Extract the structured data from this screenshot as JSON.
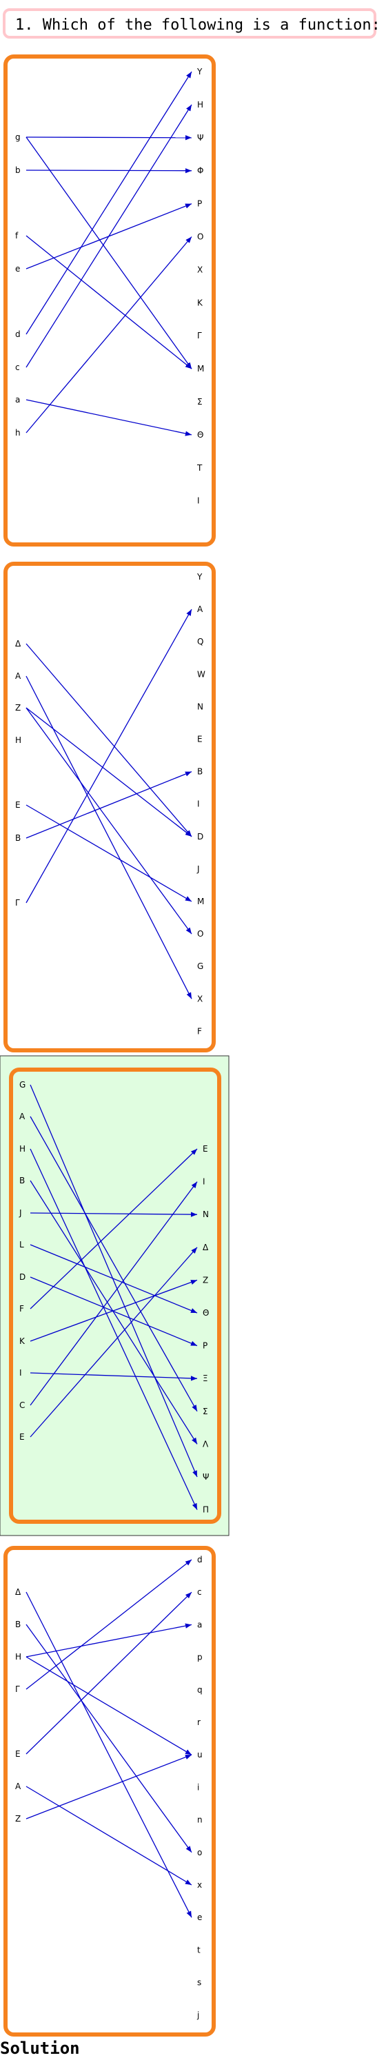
{
  "question": {
    "number": "1.",
    "text": "Which of the following is a function:"
  },
  "solution_label": "Solution",
  "colors": {
    "frame": "#f5821f",
    "arrow": "#0000cc",
    "highlight_bg": "#e0fde0",
    "question_border": "#ffc7cc"
  },
  "diagrams": [
    {
      "highlighted": false,
      "left_labels": [
        "g",
        "b",
        "f",
        "e",
        "d",
        "c",
        "a",
        "h"
      ],
      "right_labels": [
        "Y",
        "H",
        "Ψ",
        "Φ",
        "P",
        "O",
        "X",
        "K",
        "Γ",
        "M",
        "Σ",
        "Θ",
        "T",
        "I"
      ],
      "arrows": [
        [
          "g",
          "Ψ"
        ],
        [
          "g",
          "M"
        ],
        [
          "b",
          "Φ"
        ],
        [
          "f",
          "M"
        ],
        [
          "e",
          "P"
        ],
        [
          "d",
          "Y"
        ],
        [
          "c",
          "H"
        ],
        [
          "a",
          "Θ"
        ],
        [
          "h",
          "O"
        ]
      ]
    },
    {
      "highlighted": false,
      "left_labels": [
        "Δ",
        "A",
        "Z",
        "H",
        "E",
        "B",
        "Γ"
      ],
      "right_labels": [
        "Y",
        "A",
        "Q",
        "W",
        "N",
        "E",
        "B",
        "I",
        "D",
        "J",
        "M",
        "O",
        "G",
        "X",
        "F"
      ],
      "arrows": [
        [
          "Δ",
          "D"
        ],
        [
          "A",
          "X"
        ],
        [
          "Z",
          "D"
        ],
        [
          "Z",
          "O"
        ],
        [
          "E",
          "M"
        ],
        [
          "B",
          "B"
        ],
        [
          "Γ",
          "A"
        ]
      ]
    },
    {
      "highlighted": true,
      "left_labels": [
        "G",
        "A",
        "H",
        "B",
        "J",
        "L",
        "D",
        "F",
        "K",
        "I",
        "C",
        "E"
      ],
      "right_labels": [
        "E",
        "I",
        "N",
        "Δ",
        "Z",
        "Θ",
        "P",
        "Ξ",
        "Σ",
        "Λ",
        "Ψ",
        "Π"
      ],
      "arrows": [
        [
          "G",
          "Ψ"
        ],
        [
          "A",
          "Σ"
        ],
        [
          "H",
          "Π"
        ],
        [
          "B",
          "Λ"
        ],
        [
          "J",
          "N"
        ],
        [
          "L",
          "Θ"
        ],
        [
          "D",
          "P"
        ],
        [
          "F",
          "E"
        ],
        [
          "K",
          "Z"
        ],
        [
          "I",
          "Ξ"
        ],
        [
          "C",
          "I"
        ],
        [
          "E",
          "Δ"
        ]
      ]
    },
    {
      "highlighted": false,
      "left_labels": [
        "Δ",
        "B",
        "H",
        "Γ",
        "E",
        "A",
        "Z"
      ],
      "right_labels": [
        "d",
        "c",
        "a",
        "p",
        "q",
        "r",
        "u",
        "i",
        "n",
        "o",
        "x",
        "e",
        "t",
        "s",
        "j"
      ],
      "arrows": [
        [
          "Δ",
          "e"
        ],
        [
          "B",
          "o"
        ],
        [
          "H",
          "a"
        ],
        [
          "H",
          "u"
        ],
        [
          "Γ",
          "d"
        ],
        [
          "E",
          "c"
        ],
        [
          "A",
          "x"
        ],
        [
          "Z",
          "u"
        ]
      ]
    }
  ]
}
